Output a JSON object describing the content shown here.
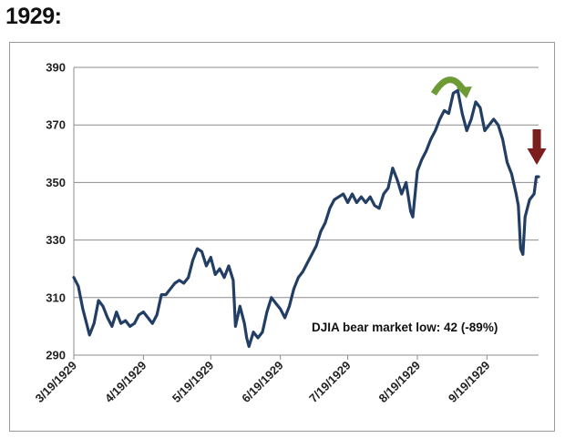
{
  "page": {
    "title": "1929:"
  },
  "chart_data": {
    "type": "line",
    "title": "",
    "xlabel": "",
    "ylabel": "",
    "x_tick_labels": [
      "3/19/1929",
      "4/19/1929",
      "5/19/1929",
      "6/19/1929",
      "7/19/1929",
      "8/19/1929",
      "9/19/1929"
    ],
    "x_range": [
      "1929-03-19",
      "1929-10-12"
    ],
    "ylim": [
      290,
      390
    ],
    "y_ticks": [
      290,
      310,
      330,
      350,
      370,
      390
    ],
    "grid": "horizontal",
    "line_color": "#233e64",
    "annotation": "DJIA bear market low: 42 (-89%)",
    "markers": [
      {
        "name": "curved-arrow",
        "date": "1929-09-03",
        "color": "#6e9a36"
      },
      {
        "name": "down-arrow",
        "date": "1929-10-11",
        "color": "#7a1e1e"
      }
    ],
    "series": [
      {
        "values": [
          [
            "1929-03-19",
            317
          ],
          [
            "1929-03-21",
            314
          ],
          [
            "1929-03-23",
            306
          ],
          [
            "1929-03-25",
            300
          ],
          [
            "1929-03-26",
            297
          ],
          [
            "1929-03-28",
            301
          ],
          [
            "1929-03-30",
            309
          ],
          [
            "1929-04-01",
            307
          ],
          [
            "1929-04-03",
            303
          ],
          [
            "1929-04-05",
            300
          ],
          [
            "1929-04-07",
            305
          ],
          [
            "1929-04-09",
            301
          ],
          [
            "1929-04-11",
            302
          ],
          [
            "1929-04-13",
            300
          ],
          [
            "1929-04-15",
            301
          ],
          [
            "1929-04-17",
            304
          ],
          [
            "1929-04-19",
            305
          ],
          [
            "1929-04-21",
            303
          ],
          [
            "1929-04-23",
            301
          ],
          [
            "1929-04-25",
            304
          ],
          [
            "1929-04-27",
            311
          ],
          [
            "1929-04-29",
            311
          ],
          [
            "1929-05-01",
            313
          ],
          [
            "1929-05-03",
            315
          ],
          [
            "1929-05-05",
            316
          ],
          [
            "1929-05-07",
            315
          ],
          [
            "1929-05-09",
            317
          ],
          [
            "1929-05-11",
            323
          ],
          [
            "1929-05-13",
            327
          ],
          [
            "1929-05-15",
            326
          ],
          [
            "1929-05-17",
            321
          ],
          [
            "1929-05-19",
            324
          ],
          [
            "1929-05-21",
            318
          ],
          [
            "1929-05-23",
            320
          ],
          [
            "1929-05-25",
            317
          ],
          [
            "1929-05-27",
            321
          ],
          [
            "1929-05-29",
            316
          ],
          [
            "1929-05-30",
            300
          ],
          [
            "1929-06-01",
            307
          ],
          [
            "1929-06-03",
            301
          ],
          [
            "1929-06-04",
            296
          ],
          [
            "1929-06-05",
            293
          ],
          [
            "1929-06-07",
            298
          ],
          [
            "1929-06-09",
            296
          ],
          [
            "1929-06-11",
            298
          ],
          [
            "1929-06-13",
            305
          ],
          [
            "1929-06-15",
            310
          ],
          [
            "1929-06-17",
            308
          ],
          [
            "1929-06-19",
            306
          ],
          [
            "1929-06-21",
            303
          ],
          [
            "1929-06-23",
            307
          ],
          [
            "1929-06-25",
            313
          ],
          [
            "1929-06-27",
            317
          ],
          [
            "1929-06-29",
            319
          ],
          [
            "1929-07-01",
            322
          ],
          [
            "1929-07-03",
            325
          ],
          [
            "1929-07-05",
            328
          ],
          [
            "1929-07-07",
            333
          ],
          [
            "1929-07-09",
            336
          ],
          [
            "1929-07-11",
            341
          ],
          [
            "1929-07-13",
            344
          ],
          [
            "1929-07-15",
            345
          ],
          [
            "1929-07-17",
            346
          ],
          [
            "1929-07-19",
            343
          ],
          [
            "1929-07-21",
            346
          ],
          [
            "1929-07-23",
            343
          ],
          [
            "1929-07-25",
            345
          ],
          [
            "1929-07-27",
            343
          ],
          [
            "1929-07-29",
            345
          ],
          [
            "1929-07-31",
            342
          ],
          [
            "1929-08-02",
            341
          ],
          [
            "1929-08-04",
            346
          ],
          [
            "1929-08-06",
            348
          ],
          [
            "1929-08-08",
            355
          ],
          [
            "1929-08-10",
            351
          ],
          [
            "1929-08-12",
            346
          ],
          [
            "1929-08-14",
            350
          ],
          [
            "1929-08-16",
            340
          ],
          [
            "1929-08-17",
            338
          ],
          [
            "1929-08-19",
            354
          ],
          [
            "1929-08-21",
            358
          ],
          [
            "1929-08-23",
            361
          ],
          [
            "1929-08-25",
            365
          ],
          [
            "1929-08-27",
            368
          ],
          [
            "1929-08-29",
            372
          ],
          [
            "1929-08-31",
            375
          ],
          [
            "1929-09-02",
            374
          ],
          [
            "1929-09-04",
            381
          ],
          [
            "1929-09-06",
            382
          ],
          [
            "1929-09-08",
            374
          ],
          [
            "1929-09-10",
            368
          ],
          [
            "1929-09-12",
            372
          ],
          [
            "1929-09-14",
            378
          ],
          [
            "1929-09-16",
            376
          ],
          [
            "1929-09-18",
            368
          ],
          [
            "1929-09-20",
            370
          ],
          [
            "1929-09-22",
            372
          ],
          [
            "1929-09-24",
            370
          ],
          [
            "1929-09-26",
            365
          ],
          [
            "1929-09-28",
            357
          ],
          [
            "1929-09-30",
            353
          ],
          [
            "1929-10-02",
            346
          ],
          [
            "1929-10-03",
            342
          ],
          [
            "1929-10-04",
            327
          ],
          [
            "1929-10-05",
            325
          ],
          [
            "1929-10-06",
            338
          ],
          [
            "1929-10-08",
            344
          ],
          [
            "1929-10-10",
            346
          ],
          [
            "1929-10-11",
            352
          ],
          [
            "1929-10-12",
            352
          ]
        ]
      }
    ]
  }
}
